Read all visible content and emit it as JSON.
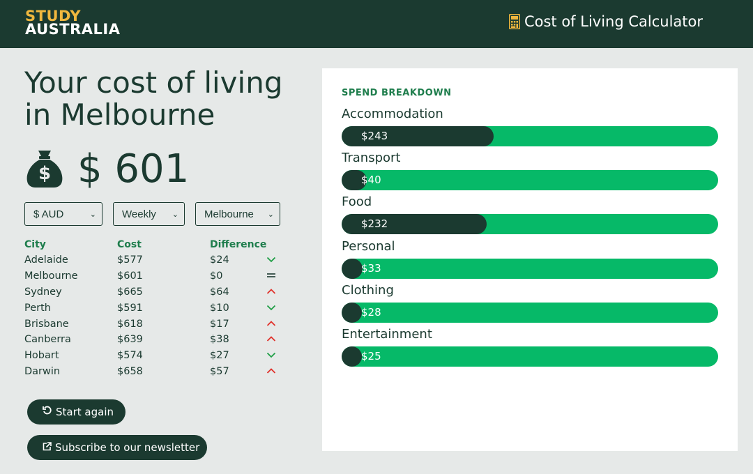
{
  "header": {
    "logo_line1": "STUDY",
    "logo_line2": "AUSTRALIA",
    "app_title": "Cost of Living Calculator",
    "app_icon": "calculator-icon",
    "bg_color": "#1b3a30",
    "accent_color": "#f0b73e"
  },
  "main": {
    "heading": "Your cost of living in Melbourne",
    "total_icon": "money-bag-icon",
    "total": "$ 601"
  },
  "selects": {
    "currency": "$ AUD",
    "period": "Weekly",
    "city": "Melbourne"
  },
  "table": {
    "headers": [
      "City",
      "Cost",
      "Difference"
    ],
    "rows": [
      {
        "city": "Adelaide",
        "cost": "$577",
        "diff": "$24",
        "trend": "down"
      },
      {
        "city": "Melbourne",
        "cost": "$601",
        "diff": "$0",
        "trend": "equal"
      },
      {
        "city": "Sydney",
        "cost": "$665",
        "diff": "$64",
        "trend": "up"
      },
      {
        "city": "Perth",
        "cost": "$591",
        "diff": "$10",
        "trend": "down"
      },
      {
        "city": "Brisbane",
        "cost": "$618",
        "diff": "$17",
        "trend": "up"
      },
      {
        "city": "Canberra",
        "cost": "$639",
        "diff": "$38",
        "trend": "up"
      },
      {
        "city": "Hobart",
        "cost": "$574",
        "diff": "$27",
        "trend": "down"
      },
      {
        "city": "Darwin",
        "cost": "$658",
        "diff": "$57",
        "trend": "up"
      }
    ]
  },
  "buttons": {
    "restart": "Start again",
    "subscribe": "Subscribe to our newsletter"
  },
  "breakdown": {
    "title": "SPEND BREAKDOWN",
    "track_color": "#06b968",
    "fill_color": "#1b3a30",
    "max": 601,
    "items": [
      {
        "label": "Accommodation",
        "value": 243,
        "display": "$243"
      },
      {
        "label": "Transport",
        "value": 40,
        "display": "$40"
      },
      {
        "label": "Food",
        "value": 232,
        "display": "$232"
      },
      {
        "label": "Personal",
        "value": 33,
        "display": "$33"
      },
      {
        "label": "Clothing",
        "value": 28,
        "display": "$28"
      },
      {
        "label": "Entertainment",
        "value": 25,
        "display": "$25"
      }
    ]
  }
}
